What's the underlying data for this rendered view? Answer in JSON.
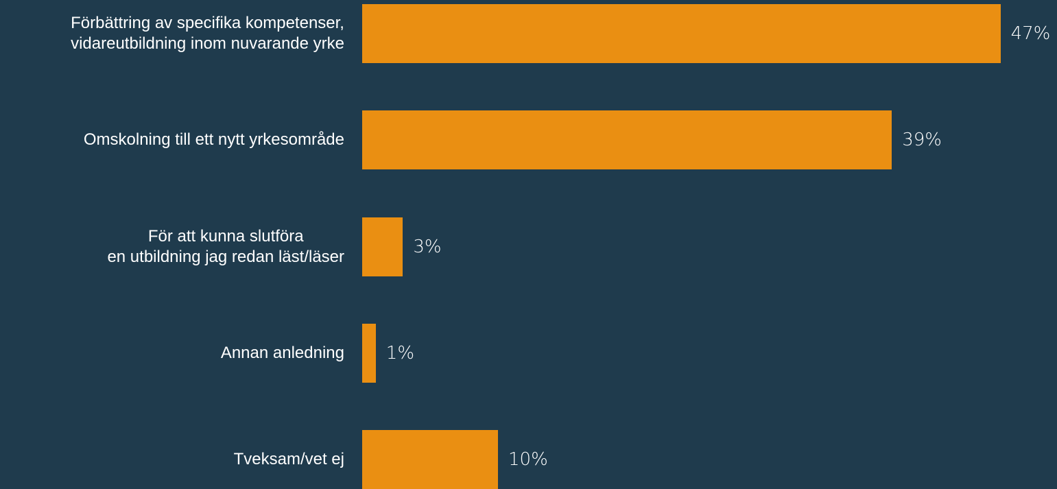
{
  "chart_data": {
    "type": "bar",
    "orientation": "horizontal",
    "categories": [
      "Förbättring av specifika kompetenser,\nvidareutbildning inom nuvarande yrke",
      "Omskolning till ett nytt yrkesområde",
      "För att kunna slutföra\nen utbildning jag redan läst/läser",
      "Annan anledning",
      "Tveksam/vet ej"
    ],
    "values": [
      47,
      39,
      3,
      1,
      10
    ],
    "value_labels": [
      "47%",
      "39%",
      "3%",
      "1%",
      "10%"
    ],
    "color": "#ea8f12"
  }
}
